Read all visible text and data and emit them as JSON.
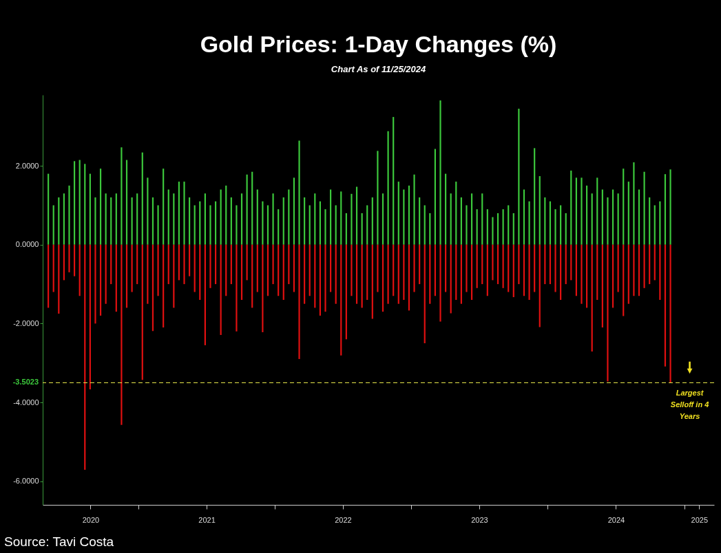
{
  "chart_data": {
    "type": "bar",
    "title": "Gold Prices: 1-Day Changes (%)",
    "subtitle": "Chart As of 11/25/2024",
    "x": [
      "2020-05-04",
      "2020-05-18",
      "2020-06-01",
      "2020-06-15",
      "2020-06-29",
      "2020-07-13",
      "2020-07-27",
      "2020-08-10",
      "2020-08-24",
      "2020-09-07",
      "2020-09-21",
      "2020-10-05",
      "2020-10-19",
      "2020-11-02",
      "2020-11-16",
      "2020-11-30",
      "2020-12-14",
      "2020-12-28",
      "2021-01-11",
      "2021-01-25",
      "2021-02-08",
      "2021-02-22",
      "2021-03-08",
      "2021-03-22",
      "2021-04-05",
      "2021-04-19",
      "2021-05-03",
      "2021-05-17",
      "2021-05-31",
      "2021-06-14",
      "2021-06-28",
      "2021-07-12",
      "2021-07-26",
      "2021-08-09",
      "2021-08-23",
      "2021-09-06",
      "2021-09-20",
      "2021-10-04",
      "2021-10-18",
      "2021-11-01",
      "2021-11-15",
      "2021-11-29",
      "2021-12-13",
      "2021-12-27",
      "2022-01-10",
      "2022-01-24",
      "2022-02-07",
      "2022-02-21",
      "2022-03-07",
      "2022-03-21",
      "2022-04-04",
      "2022-04-18",
      "2022-05-02",
      "2022-05-16",
      "2022-05-30",
      "2022-06-13",
      "2022-06-27",
      "2022-07-11",
      "2022-07-25",
      "2022-08-08",
      "2022-08-22",
      "2022-09-05",
      "2022-09-19",
      "2022-10-03",
      "2022-10-17",
      "2022-10-31",
      "2022-11-14",
      "2022-11-28",
      "2022-12-12",
      "2022-12-26",
      "2023-01-09",
      "2023-01-23",
      "2023-02-06",
      "2023-02-20",
      "2023-03-06",
      "2023-03-20",
      "2023-04-03",
      "2023-04-17",
      "2023-05-01",
      "2023-05-15",
      "2023-05-29",
      "2023-06-12",
      "2023-06-26",
      "2023-07-10",
      "2023-07-24",
      "2023-08-07",
      "2023-08-21",
      "2023-09-04",
      "2023-09-18",
      "2023-10-02",
      "2023-10-16",
      "2023-10-30",
      "2023-11-13",
      "2023-11-27",
      "2023-12-11",
      "2023-12-25",
      "2024-01-08",
      "2024-01-22",
      "2024-02-05",
      "2024-02-19",
      "2024-03-04",
      "2024-03-18",
      "2024-04-01",
      "2024-04-15",
      "2024-04-29",
      "2024-05-13",
      "2024-05-27",
      "2024-06-10",
      "2024-06-24",
      "2024-07-08",
      "2024-07-22",
      "2024-08-05",
      "2024-08-19",
      "2024-09-02",
      "2024-09-16",
      "2024-09-30",
      "2024-10-14",
      "2024-10-28",
      "2024-11-11",
      "2024-11-25"
    ],
    "series": [
      {
        "color": "#3cc83c",
        "values": [
          1.8,
          1.0,
          1.2,
          1.3,
          1.5,
          2.12,
          2.15,
          2.05,
          1.8,
          1.2,
          1.93,
          1.3,
          1.2,
          1.3,
          2.47,
          2.15,
          1.2,
          1.3,
          2.34,
          1.7,
          1.2,
          1.0,
          1.93,
          1.4,
          1.3,
          1.6,
          1.6,
          1.2,
          1.0,
          1.1,
          1.3,
          1.0,
          1.1,
          1.4,
          1.5,
          1.2,
          1.0,
          1.3,
          1.78,
          1.85,
          1.4,
          1.1,
          1.0,
          1.3,
          0.9,
          1.2,
          1.4,
          1.7,
          2.64,
          1.2,
          1.0,
          1.3,
          1.1,
          0.9,
          1.4,
          1.0,
          1.35,
          0.8,
          1.29,
          1.47,
          0.8,
          1.0,
          1.2,
          2.38,
          1.3,
          2.88,
          3.24,
          1.6,
          1.4,
          1.5,
          1.78,
          1.2,
          1.0,
          0.8,
          2.43,
          3.66,
          1.8,
          1.3,
          1.6,
          1.2,
          1.0,
          1.3,
          0.9,
          1.3,
          0.9,
          0.7,
          0.8,
          0.9,
          1.0,
          0.8,
          3.45,
          1.4,
          1.1,
          2.45,
          1.74,
          1.2,
          1.1,
          0.9,
          1.0,
          0.8,
          1.88,
          1.7,
          1.7,
          1.5,
          1.3,
          1.7,
          1.4,
          1.2,
          1.4,
          1.3,
          1.93,
          1.6,
          2.09,
          1.4,
          1.85,
          1.2,
          1.0,
          1.1,
          1.79,
          1.91
        ]
      },
      {
        "color": "#e01010",
        "values": [
          -1.6,
          -1.2,
          -1.75,
          -0.9,
          -0.7,
          -0.8,
          -1.3,
          -5.71,
          -3.67,
          -2.0,
          -1.8,
          -1.5,
          -1.0,
          -1.7,
          -4.57,
          -1.6,
          -1.2,
          -1.0,
          -3.43,
          -1.5,
          -2.19,
          -1.3,
          -2.1,
          -1.0,
          -1.6,
          -0.9,
          -1.0,
          -0.8,
          -1.2,
          -1.4,
          -2.55,
          -1.1,
          -1.0,
          -2.29,
          -1.3,
          -1.0,
          -2.2,
          -1.4,
          -0.9,
          -1.6,
          -1.2,
          -2.22,
          -1.3,
          -1.0,
          -1.3,
          -1.4,
          -1.0,
          -1.2,
          -2.9,
          -1.5,
          -1.3,
          -1.6,
          -1.8,
          -1.7,
          -1.2,
          -1.5,
          -2.81,
          -2.4,
          -1.3,
          -1.5,
          -1.6,
          -1.4,
          -1.88,
          -1.2,
          -1.7,
          -1.5,
          -1.3,
          -1.5,
          -1.4,
          -1.67,
          -1.2,
          -1.0,
          -2.5,
          -1.5,
          -1.3,
          -1.95,
          -1.2,
          -1.74,
          -1.4,
          -1.5,
          -1.2,
          -1.4,
          -1.1,
          -1.0,
          -1.3,
          -0.9,
          -1.0,
          -1.1,
          -1.2,
          -1.33,
          -1.0,
          -1.3,
          -1.4,
          -1.2,
          -2.09,
          -1.0,
          -1.0,
          -1.2,
          -1.4,
          -1.0,
          -0.9,
          -1.3,
          -1.5,
          -1.6,
          -2.71,
          -1.4,
          -2.1,
          -3.47,
          -1.6,
          -1.2,
          -1.81,
          -1.5,
          -1.3,
          -1.3,
          -1.1,
          -1.0,
          -0.9,
          -1.4,
          -3.09,
          -3.5
        ]
      }
    ],
    "stacked": true,
    "xlim": [
      "2020-04-19",
      "2025-03-22"
    ],
    "xticks": [
      {
        "value": "2020-08-25",
        "label": "2020"
      },
      {
        "value": "2021-01-01",
        "label": null
      },
      {
        "value": "2021-07-02",
        "label": "2021"
      },
      {
        "value": "2022-01-01",
        "label": null
      },
      {
        "value": "2022-07-02",
        "label": "2022"
      },
      {
        "value": "2023-01-01",
        "label": null
      },
      {
        "value": "2023-07-02",
        "label": "2023"
      },
      {
        "value": "2024-01-01",
        "label": null
      },
      {
        "value": "2024-07-02",
        "label": "2024"
      },
      {
        "value": "2025-01-01",
        "label": null
      },
      {
        "value": "2025-02-10",
        "label": "2025"
      }
    ],
    "ylim": [
      -6.6,
      3.8
    ],
    "yticks": [
      {
        "value": 2,
        "label": "2.0000"
      },
      {
        "value": 0,
        "label": "0.0000"
      },
      {
        "value": -2,
        "label": "-2.0000"
      },
      {
        "value": -4,
        "label": "-4.0000"
      },
      {
        "value": -6,
        "label": "-6.0000"
      }
    ],
    "ref_lines": [
      {
        "axis": "y",
        "value": -3.5023,
        "label": "-3.5023",
        "color": "#e8e84a",
        "line_style": "dashed"
      }
    ],
    "annotations": [
      {
        "text": "Largest Selloff in 4 Years",
        "x": "2024-11-25",
        "y": -3.5023
      },
      "Source: Tavi Costa"
    ]
  }
}
